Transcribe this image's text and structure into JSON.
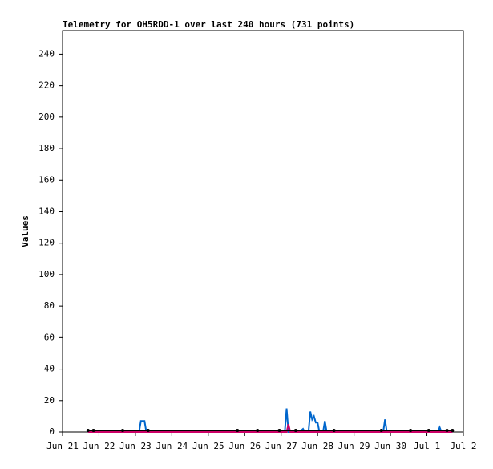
{
  "chart_data": {
    "type": "line",
    "title": "Telemetry for OH5RDD-1 over last 240 hours (731 points)",
    "y_label": "Values",
    "xlim": [
      0,
      11
    ],
    "xticks": [
      {
        "value": 0,
        "label": "Jun 21"
      },
      {
        "value": 1,
        "label": "Jun 22"
      },
      {
        "value": 2,
        "label": "Jun 23"
      },
      {
        "value": 3,
        "label": "Jun 24"
      },
      {
        "value": 4,
        "label": "Jun 25"
      },
      {
        "value": 5,
        "label": "Jun 26"
      },
      {
        "value": 6,
        "label": "Jun 27"
      },
      {
        "value": 7,
        "label": "Jun 28"
      },
      {
        "value": 8,
        "label": "Jun 29"
      },
      {
        "value": 9,
        "label": "Jun 30"
      },
      {
        "value": 10,
        "label": "Jul 1"
      },
      {
        "value": 11,
        "label": "Jul 2"
      }
    ],
    "ylim": [
      0,
      255
    ],
    "yticks": [
      0,
      20,
      40,
      60,
      80,
      100,
      120,
      140,
      160,
      180,
      200,
      220,
      240
    ],
    "series": [
      {
        "color": "#0066cc",
        "x": [
          0.7,
          2.1,
          2.15,
          2.25,
          2.3,
          6.1,
          6.15,
          6.2,
          6.5,
          6.6,
          6.65,
          6.75,
          6.8,
          6.85,
          6.9,
          6.95,
          7.0,
          7.05,
          7.15,
          7.2,
          7.25,
          8.8,
          8.85,
          8.9,
          10.3,
          10.35,
          10.4,
          10.7
        ],
        "values": [
          0,
          0,
          7,
          7,
          0,
          0,
          15,
          0,
          0,
          2,
          0,
          0,
          13,
          8,
          10,
          6,
          6,
          0,
          0,
          7,
          0,
          0,
          8,
          0,
          0,
          3,
          0,
          0
        ]
      },
      {
        "color": "#cc0066",
        "x": [
          0.7,
          6.15,
          6.2,
          6.25,
          10.7
        ],
        "values": [
          0,
          0,
          5,
          0,
          0
        ]
      },
      {
        "color": "#000000",
        "x": [
          0.7,
          0.85,
          1.65,
          2.35,
          4.8,
          5.35,
          5.95,
          6.4,
          7.45,
          8.75,
          9.55,
          10.05,
          10.55,
          10.7
        ],
        "values": [
          1,
          1,
          1,
          1,
          1,
          1,
          1,
          1,
          1,
          1,
          1,
          1,
          1,
          1
        ]
      }
    ]
  }
}
